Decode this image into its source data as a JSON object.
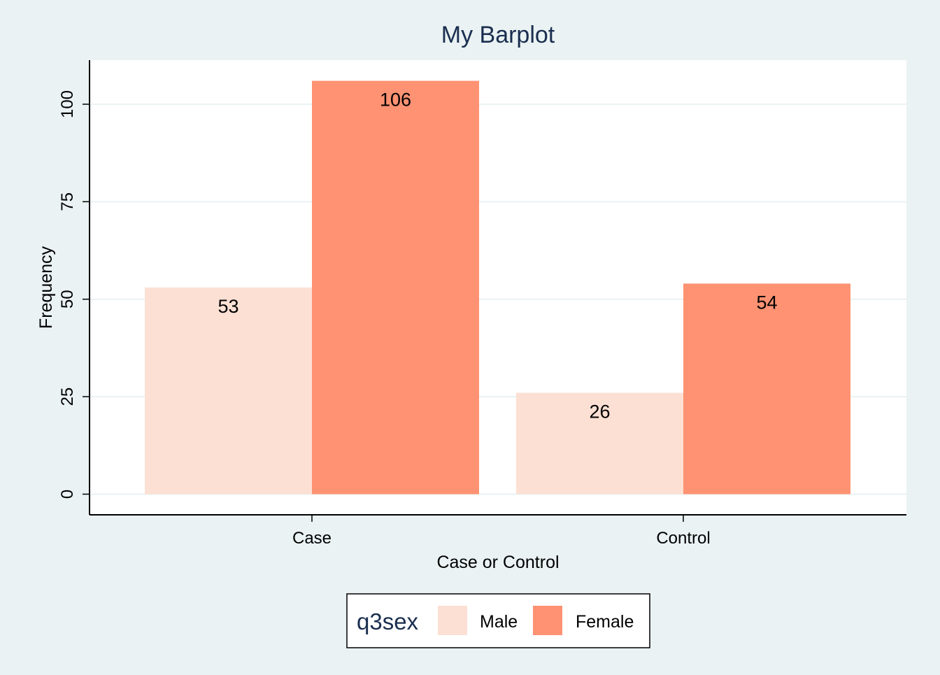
{
  "chart_data": {
    "type": "bar",
    "title": "My Barplot",
    "xlabel": "Case or Control",
    "ylabel": "Frequency",
    "categories": [
      "Case",
      "Control"
    ],
    "series": [
      {
        "name": "Male",
        "values": [
          53,
          26
        ],
        "color": "#fce0d4"
      },
      {
        "name": "Female",
        "values": [
          106,
          54
        ],
        "color": "#fe9272"
      }
    ],
    "yticks": [
      0,
      25,
      50,
      75,
      100
    ],
    "ytick_labels": [
      "0",
      "25",
      "50",
      "75",
      "100"
    ],
    "ylim": [
      -5.3,
      111.3
    ],
    "grid": true,
    "data_labels": true,
    "legend": {
      "title": "q3sex",
      "placement": "bottom-center"
    },
    "colors": {
      "background": "#eaf2f3",
      "plot_background": "#ffffff",
      "gridline": "#eaf2f3",
      "title": "#1a2e4f",
      "text": "#000000",
      "axis": "#000000"
    }
  }
}
